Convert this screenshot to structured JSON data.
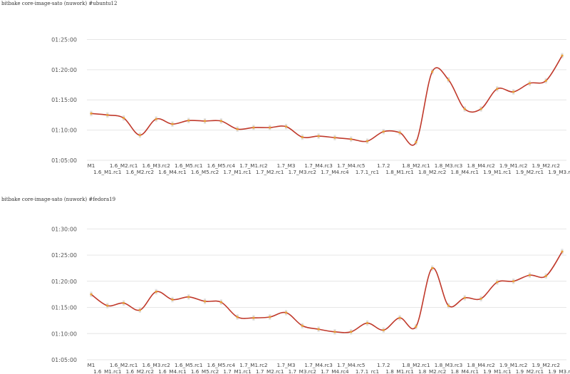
{
  "chart_data": [
    {
      "type": "line",
      "title": "bitbake core-image-sato (nuwork) #ubuntu12",
      "yticks": [
        "01:05:00",
        "01:10:00",
        "01:15:00",
        "01:20:00",
        "01:25:00"
      ],
      "ylim": [
        "01:05:00",
        "01:26:00"
      ],
      "categories": [
        "M1",
        "1.6_M1.rc1",
        "1.6_M2.rc1",
        "1.6_M2.rc2",
        "1.6_M3.rc2",
        "1.6_M4.rc1",
        "1.6_M5.rc1",
        "1.6_M5.rc2",
        "1.6_M5.rc4",
        "1.7_M1.rc1",
        "1.7_M1.rc2",
        "1.7_M2.rc1",
        "1.7_M3",
        "1.7_M3.rc2",
        "1.7_M4.rc3",
        "1.7_M4.rc4",
        "1.7_M4.rc5",
        "1.7.1_rc1",
        "1.7.2",
        "1.8_M1.rc1",
        "1.8_M2.rc1",
        "1.8_M2.rc2",
        "1.8_M3.rc3",
        "1.8_M4.rc1",
        "1.8_M4.rc2",
        "1.9_M1.rc1",
        "1.9_M1.rc2",
        "1.9_M2.rc1",
        "1.9_M2.rc2",
        "1.9_M3.rc1"
      ],
      "series": [
        {
          "color": "#c0392b",
          "values": [
            "01:12:45",
            "01:12:30",
            "01:12:00",
            "01:09:10",
            "01:11:50",
            "01:11:00",
            "01:11:35",
            "01:11:30",
            "01:11:30",
            "01:10:10",
            "01:10:25",
            "01:10:25",
            "01:10:35",
            "01:08:50",
            "01:09:00",
            "01:08:45",
            "01:08:30",
            "01:08:10",
            "01:09:45",
            "01:09:35",
            "01:08:00",
            "01:19:40",
            "01:18:20",
            "01:13:30",
            "01:13:30",
            "01:16:50",
            "01:16:20",
            "01:17:45",
            "01:18:10",
            "01:22:20"
          ]
        }
      ],
      "grid": true
    },
    {
      "type": "line",
      "title": "bitbake core-image-sato (nuwork) #fedora19",
      "yticks": [
        "01:05:00",
        "01:10:00",
        "01:15:00",
        "01:20:00",
        "01:25:00",
        "01:30:00"
      ],
      "ylim": [
        "01:05:00",
        "01:31:00"
      ],
      "categories": [
        "M1",
        "1.6_M1.rc1",
        "1.6_M2.rc1",
        "1.6_M2.rc2",
        "1.6_M3.rc2",
        "1.6_M4.rc1",
        "1.6_M5.rc1",
        "1.6_M5.rc2",
        "1.6_M5.rc4",
        "1.7_M1.rc1",
        "1.7_M1.rc2",
        "1.7_M2.rc1",
        "1.7_M3",
        "1.7_M3.rc2",
        "1.7_M4.rc3",
        "1.7_M4.rc4",
        "1.7_M4.rc5",
        "1.7.1_rc1",
        "1.7.2",
        "1.8_M1.rc1",
        "1.8_M2.rc1",
        "1.8_M2.rc2",
        "1.8_M3.rc3",
        "1.8_M4.rc1",
        "1.8_M4.rc2",
        "1.9_M1.rc1",
        "1.9_M1.rc2",
        "1.9_M2.rc1",
        "1.9_M2.rc2",
        "1.9_M3.rc1"
      ],
      "series": [
        {
          "color": "#c0392b",
          "values": [
            "01:17:30",
            "01:15:20",
            "01:15:50",
            "01:14:30",
            "01:18:00",
            "01:16:30",
            "01:17:00",
            "01:16:10",
            "01:16:00",
            "01:13:10",
            "01:13:00",
            "01:13:10",
            "01:14:00",
            "01:11:30",
            "01:10:50",
            "01:10:20",
            "01:10:20",
            "01:12:00",
            "01:10:40",
            "01:13:00",
            "01:11:20",
            "01:22:30",
            "01:15:20",
            "01:16:50",
            "01:16:40",
            "01:19:50",
            "01:20:00",
            "01:21:10",
            "01:21:00",
            "01:25:40"
          ]
        }
      ],
      "grid": true
    }
  ]
}
